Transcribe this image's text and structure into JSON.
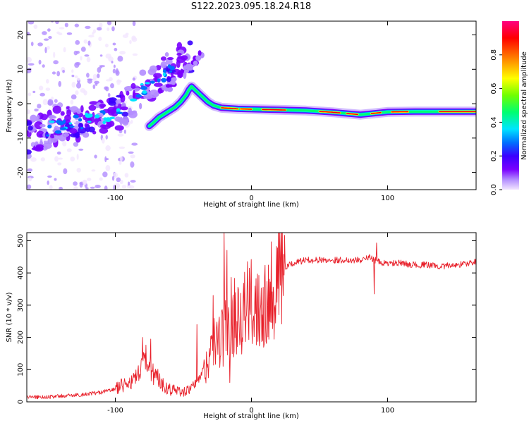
{
  "figure": {
    "title": "S122.2023.095.18.24.R18"
  },
  "chart_data": [
    {
      "type": "heatmap",
      "name": "spectrogram",
      "xlabel": "Height of straight line (km)",
      "ylabel": "Frequency (Hz)",
      "xlim": [
        -165,
        165
      ],
      "ylim": [
        -25,
        24
      ],
      "xticks": [
        -100,
        0,
        100
      ],
      "yticks": [
        -20,
        -10,
        0,
        10,
        20
      ],
      "colorbar": {
        "label": "Normalized spectral amplitude",
        "range": [
          0.0,
          1.0
        ],
        "ticks": [
          0.0,
          0.2,
          0.4,
          0.6,
          0.8
        ],
        "colors": [
          "#f2e6ff",
          "#b28cff",
          "#7a00ff",
          "#3a00ff",
          "#0070ff",
          "#00e5ff",
          "#00ff70",
          "#70ff00",
          "#ffff00",
          "#ff8000",
          "#ff0000",
          "#ff0080"
        ]
      },
      "ridge": [
        {
          "x": -75,
          "y": -6.5
        },
        {
          "x": -72,
          "y": -5.5
        },
        {
          "x": -68,
          "y": -4
        },
        {
          "x": -64,
          "y": -3
        },
        {
          "x": -60,
          "y": -2
        },
        {
          "x": -56,
          "y": -1
        },
        {
          "x": -52,
          "y": 0.5
        },
        {
          "x": -48,
          "y": 2.5
        },
        {
          "x": -46,
          "y": 4
        },
        {
          "x": -44,
          "y": 5
        },
        {
          "x": -40,
          "y": 3.5
        },
        {
          "x": -36,
          "y": 2
        },
        {
          "x": -32,
          "y": 0.5
        },
        {
          "x": -28,
          "y": -0.5
        },
        {
          "x": -22,
          "y": -1.2
        },
        {
          "x": -10,
          "y": -1.5
        },
        {
          "x": 0,
          "y": -1.6
        },
        {
          "x": 20,
          "y": -1.8
        },
        {
          "x": 40,
          "y": -2
        },
        {
          "x": 60,
          "y": -2.5
        },
        {
          "x": 80,
          "y": -3.2
        },
        {
          "x": 100,
          "y": -2.4
        },
        {
          "x": 120,
          "y": -2.3
        },
        {
          "x": 140,
          "y": -2.3
        },
        {
          "x": 165,
          "y": -2.3
        }
      ],
      "diffuse_band": [
        {
          "x": -165,
          "y": -10
        },
        {
          "x": -140,
          "y": -6
        },
        {
          "x": -120,
          "y": -5
        },
        {
          "x": -100,
          "y": -3
        },
        {
          "x": -90,
          "y": 0
        },
        {
          "x": -80,
          "y": 4
        },
        {
          "x": -70,
          "y": 7
        },
        {
          "x": -60,
          "y": 10
        },
        {
          "x": -50,
          "y": 13
        }
      ],
      "upper_streak": [
        {
          "x": -62,
          "y": 4
        },
        {
          "x": -55,
          "y": 7
        },
        {
          "x": -48,
          "y": 10
        },
        {
          "x": -42,
          "y": 12
        },
        {
          "x": -36,
          "y": 15
        }
      ]
    },
    {
      "type": "line",
      "name": "snr",
      "xlabel": "Height of straight line (km)",
      "ylabel": "SNR (10 * v/v)",
      "xlim": [
        -165,
        165
      ],
      "ylim": [
        0,
        525
      ],
      "xticks": [
        -100,
        0,
        100
      ],
      "yticks": [
        0,
        100,
        200,
        300,
        400,
        500
      ],
      "color": "#e8202a",
      "x": [
        -165,
        -150,
        -140,
        -130,
        -120,
        -110,
        -100,
        -95,
        -90,
        -85,
        -80,
        -77,
        -75,
        -72,
        -70,
        -65,
        -60,
        -55,
        -50,
        -45,
        -40,
        -35,
        -32,
        -30,
        -28,
        -25,
        -22,
        -20,
        -18,
        -15,
        -12,
        -10,
        -8,
        -5,
        -2,
        0,
        2,
        5,
        8,
        10,
        12,
        15,
        18,
        20,
        25,
        30,
        40,
        50,
        60,
        70,
        80,
        85,
        88,
        90,
        92,
        95,
        100,
        110,
        120,
        130,
        140,
        150,
        160,
        165
      ],
      "y": [
        15,
        15,
        18,
        20,
        25,
        30,
        40,
        50,
        60,
        70,
        100,
        140,
        110,
        90,
        80,
        55,
        40,
        35,
        30,
        40,
        60,
        100,
        130,
        150,
        170,
        190,
        200,
        220,
        240,
        260,
        270,
        280,
        285,
        290,
        295,
        300,
        310,
        320,
        300,
        320,
        340,
        360,
        380,
        395,
        415,
        430,
        440,
        440,
        440,
        440,
        440,
        445,
        450,
        440,
        440,
        430,
        430,
        430,
        425,
        425,
        420,
        425,
        430,
        435
      ],
      "spikes": [
        {
          "x": -80,
          "y": 200
        },
        {
          "x": -74,
          "y": 195
        },
        {
          "x": -20,
          "y": 530
        },
        {
          "x": -18,
          "y": 470
        },
        {
          "x": -16,
          "y": 60
        },
        {
          "x": -28,
          "y": 330
        },
        {
          "x": -24,
          "y": 250
        },
        {
          "x": 92,
          "y": 493
        },
        {
          "x": 90,
          "y": 335
        },
        {
          "x": -40,
          "y": 240
        }
      ]
    }
  ]
}
